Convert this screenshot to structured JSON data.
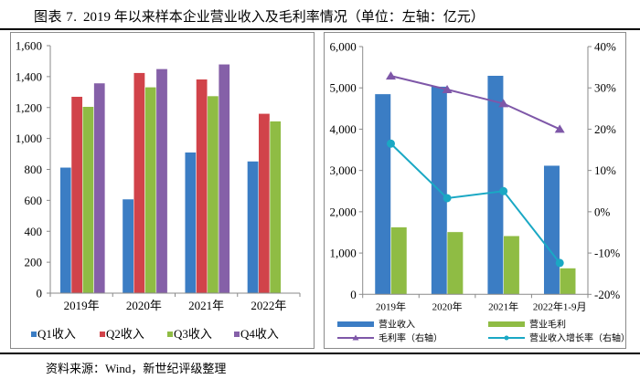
{
  "figure": {
    "number": "图表 7.",
    "title": "2019 年以来样本企业营业收入及毛利率情况（单位：左轴：亿元）",
    "source": "资料来源：Wind，新世纪评级整理"
  },
  "colors": {
    "q1": "#3b7dc4",
    "q2": "#d1434a",
    "q3": "#8fbc44",
    "q4": "#8560a8",
    "revenue": "#3b7dc4",
    "gross_profit": "#8fbc44",
    "margin_line": "#7e57a8",
    "growth_line": "#1aa8c4",
    "axis": "#8a8a8a"
  },
  "chart_data": [
    {
      "type": "bar",
      "title": "",
      "xlabel": "",
      "ylabel": "",
      "categories": [
        "2019年",
        "2020年",
        "2021年",
        "2022年"
      ],
      "series": [
        {
          "name": "Q1收入",
          "values": [
            813,
            608,
            911,
            853
          ]
        },
        {
          "name": "Q2收入",
          "values": [
            1271,
            1425,
            1383,
            1161
          ]
        },
        {
          "name": "Q3收入",
          "values": [
            1206,
            1332,
            1275,
            1112
          ]
        },
        {
          "name": "Q4收入",
          "values": [
            1358,
            1450,
            1480,
            null
          ]
        }
      ],
      "ylim": [
        0,
        1600
      ],
      "yticks": [
        0,
        200,
        400,
        600,
        800,
        1000,
        1200,
        1400,
        1600
      ],
      "ytick_labels": [
        "0",
        "200",
        "400",
        "600",
        "800",
        "1,000",
        "1,200",
        "1,400",
        "1,600"
      ],
      "grid": false,
      "legend": "bottom"
    },
    {
      "type": "bar",
      "title": "",
      "xlabel": "",
      "categories": [
        "2019年",
        "2020年",
        "2021年",
        "2022年1-9月"
      ],
      "series": [
        {
          "name": "营业收入",
          "axis": "left",
          "kind": "bar",
          "values": [
            4853,
            5035,
            5298,
            3121
          ]
        },
        {
          "name": "营业毛利",
          "axis": "left",
          "kind": "bar",
          "values": [
            1630,
            1513,
            1417,
            636
          ]
        },
        {
          "name": "毛利率（右轴）",
          "axis": "right",
          "kind": "line",
          "marker": "triangle",
          "values": [
            32.9,
            29.6,
            26.2,
            20.0
          ]
        },
        {
          "name": "营业收入增长率（右轴）",
          "axis": "right",
          "kind": "line",
          "marker": "circle",
          "values": [
            16.5,
            3.3,
            5.0,
            -12.4
          ]
        }
      ],
      "ylim": [
        0,
        6000
      ],
      "yticks": [
        0,
        1000,
        2000,
        3000,
        4000,
        5000,
        6000
      ],
      "ytick_labels": [
        "0",
        "1,000",
        "2,000",
        "3,000",
        "4,000",
        "5,000",
        "6,000"
      ],
      "y2lim": [
        -20,
        40
      ],
      "y2ticks": [
        -20,
        -10,
        0,
        10,
        20,
        30,
        40
      ],
      "y2tick_labels": [
        "-20%",
        "-10%",
        "0%",
        "10%",
        "20%",
        "30%",
        "40%"
      ],
      "grid": false,
      "legend": "bottom"
    }
  ]
}
